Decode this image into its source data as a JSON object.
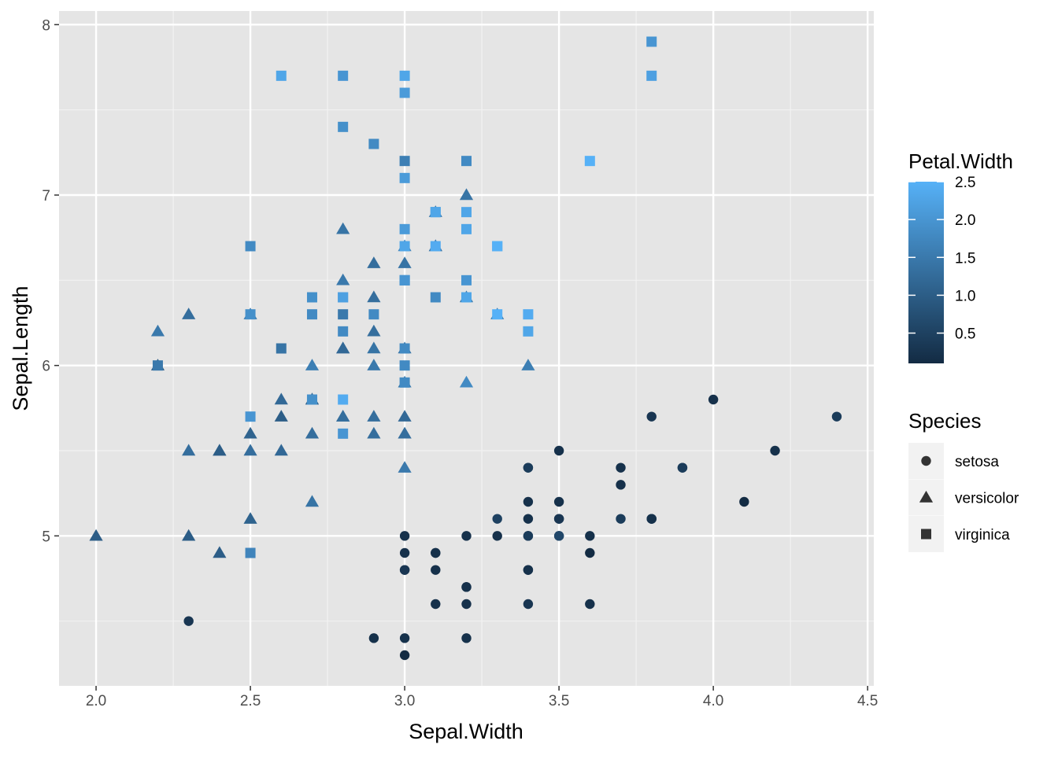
{
  "chart_data": {
    "type": "scatter",
    "xlabel": "Sepal.Width",
    "ylabel": "Sepal.Length",
    "xlim": [
      1.88,
      4.52
    ],
    "ylim": [
      4.12,
      8.08
    ],
    "x_ticks": [
      {
        "value": 2.0,
        "label": "2.0"
      },
      {
        "value": 2.5,
        "label": "2.5"
      },
      {
        "value": 3.0,
        "label": "3.0"
      },
      {
        "value": 3.5,
        "label": "3.5"
      },
      {
        "value": 4.0,
        "label": "4.0"
      },
      {
        "value": 4.5,
        "label": "4.5"
      }
    ],
    "y_ticks": [
      {
        "value": 5,
        "label": "5"
      },
      {
        "value": 6,
        "label": "6"
      },
      {
        "value": 7,
        "label": "7"
      },
      {
        "value": 8,
        "label": "8"
      }
    ],
    "grid": true,
    "background": "#e5e5e5",
    "color_legend": {
      "title": "Petal.Width",
      "low_color": "#132b43",
      "high_color": "#56b1f7",
      "range": [
        0.1,
        2.5
      ],
      "ticks": [
        {
          "value": 0.5,
          "label": "0.5"
        },
        {
          "value": 1.0,
          "label": "1.0"
        },
        {
          "value": 1.5,
          "label": "1.5"
        },
        {
          "value": 2.0,
          "label": "2.0"
        },
        {
          "value": 2.5,
          "label": "2.5"
        }
      ]
    },
    "shape_legend": {
      "title": "Species",
      "entries": [
        {
          "label": "setosa",
          "shape": "circle"
        },
        {
          "label": "versicolor",
          "shape": "triangle"
        },
        {
          "label": "virginica",
          "shape": "square"
        }
      ]
    },
    "series": [
      {
        "name": "setosa",
        "shape": "circle",
        "points": [
          [
            3.5,
            5.1,
            0.2
          ],
          [
            3.0,
            4.9,
            0.2
          ],
          [
            3.2,
            4.7,
            0.2
          ],
          [
            3.1,
            4.6,
            0.2
          ],
          [
            3.6,
            5.0,
            0.2
          ],
          [
            3.9,
            5.4,
            0.4
          ],
          [
            3.4,
            4.6,
            0.3
          ],
          [
            3.4,
            5.0,
            0.2
          ],
          [
            2.9,
            4.4,
            0.2
          ],
          [
            3.1,
            4.9,
            0.1
          ],
          [
            3.7,
            5.4,
            0.2
          ],
          [
            3.4,
            4.8,
            0.2
          ],
          [
            3.0,
            4.8,
            0.1
          ],
          [
            3.0,
            4.3,
            0.1
          ],
          [
            4.0,
            5.8,
            0.2
          ],
          [
            4.4,
            5.7,
            0.4
          ],
          [
            3.9,
            5.4,
            0.4
          ],
          [
            3.5,
            5.1,
            0.3
          ],
          [
            3.8,
            5.7,
            0.3
          ],
          [
            3.8,
            5.1,
            0.3
          ],
          [
            3.4,
            5.4,
            0.2
          ],
          [
            3.7,
            5.1,
            0.4
          ],
          [
            3.6,
            4.6,
            0.2
          ],
          [
            3.3,
            5.1,
            0.5
          ],
          [
            3.4,
            4.8,
            0.2
          ],
          [
            3.0,
            5.0,
            0.2
          ],
          [
            3.4,
            5.0,
            0.4
          ],
          [
            3.5,
            5.2,
            0.2
          ],
          [
            3.4,
            5.2,
            0.2
          ],
          [
            3.2,
            4.7,
            0.2
          ],
          [
            3.1,
            4.8,
            0.2
          ],
          [
            3.4,
            5.4,
            0.4
          ],
          [
            4.1,
            5.2,
            0.1
          ],
          [
            4.2,
            5.5,
            0.2
          ],
          [
            3.1,
            4.9,
            0.2
          ],
          [
            3.2,
            5.0,
            0.2
          ],
          [
            3.5,
            5.5,
            0.2
          ],
          [
            3.6,
            4.9,
            0.1
          ],
          [
            3.0,
            4.4,
            0.2
          ],
          [
            3.4,
            5.1,
            0.2
          ],
          [
            3.5,
            5.0,
            0.3
          ],
          [
            2.3,
            4.5,
            0.3
          ],
          [
            3.2,
            4.4,
            0.2
          ],
          [
            3.5,
            5.0,
            0.6
          ],
          [
            3.8,
            5.1,
            0.4
          ],
          [
            3.0,
            4.8,
            0.3
          ],
          [
            3.8,
            5.1,
            0.2
          ],
          [
            3.2,
            4.6,
            0.2
          ],
          [
            3.7,
            5.3,
            0.2
          ],
          [
            3.3,
            5.0,
            0.2
          ]
        ]
      },
      {
        "name": "versicolor",
        "shape": "triangle",
        "points": [
          [
            3.2,
            7.0,
            1.4
          ],
          [
            3.2,
            6.4,
            1.5
          ],
          [
            3.1,
            6.9,
            1.5
          ],
          [
            2.3,
            5.5,
            1.3
          ],
          [
            2.8,
            6.5,
            1.5
          ],
          [
            2.8,
            5.7,
            1.3
          ],
          [
            3.3,
            6.3,
            1.6
          ],
          [
            2.4,
            4.9,
            1.0
          ],
          [
            2.9,
            6.6,
            1.3
          ],
          [
            2.7,
            5.2,
            1.4
          ],
          [
            2.0,
            5.0,
            1.0
          ],
          [
            3.0,
            5.9,
            1.5
          ],
          [
            2.2,
            6.0,
            1.0
          ],
          [
            2.9,
            6.1,
            1.4
          ],
          [
            2.9,
            5.6,
            1.3
          ],
          [
            3.1,
            6.7,
            1.4
          ],
          [
            3.0,
            5.6,
            1.5
          ],
          [
            2.7,
            5.8,
            1.0
          ],
          [
            2.2,
            6.2,
            1.5
          ],
          [
            2.5,
            5.6,
            1.1
          ],
          [
            3.2,
            5.9,
            1.8
          ],
          [
            2.8,
            6.1,
            1.3
          ],
          [
            2.5,
            6.3,
            1.5
          ],
          [
            2.8,
            6.1,
            1.2
          ],
          [
            2.9,
            6.4,
            1.3
          ],
          [
            3.0,
            6.6,
            1.4
          ],
          [
            2.8,
            6.8,
            1.4
          ],
          [
            3.0,
            6.7,
            1.7
          ],
          [
            2.9,
            6.0,
            1.5
          ],
          [
            2.6,
            5.7,
            1.0
          ],
          [
            2.4,
            5.5,
            1.1
          ],
          [
            2.4,
            5.5,
            1.0
          ],
          [
            2.7,
            5.8,
            1.2
          ],
          [
            2.7,
            6.0,
            1.6
          ],
          [
            3.0,
            5.4,
            1.5
          ],
          [
            3.4,
            6.0,
            1.6
          ],
          [
            3.1,
            6.7,
            1.5
          ],
          [
            2.3,
            6.3,
            1.3
          ],
          [
            3.0,
            5.6,
            1.3
          ],
          [
            2.5,
            5.5,
            1.3
          ],
          [
            2.6,
            5.5,
            1.2
          ],
          [
            3.0,
            6.1,
            1.4
          ],
          [
            2.6,
            5.8,
            1.2
          ],
          [
            2.3,
            5.0,
            1.0
          ],
          [
            2.7,
            5.6,
            1.3
          ],
          [
            3.0,
            5.7,
            1.2
          ],
          [
            2.9,
            5.7,
            1.3
          ],
          [
            2.9,
            6.2,
            1.3
          ],
          [
            2.5,
            5.1,
            1.1
          ],
          [
            2.8,
            5.7,
            1.3
          ]
        ]
      },
      {
        "name": "virginica",
        "shape": "square",
        "points": [
          [
            3.3,
            6.3,
            2.5
          ],
          [
            2.7,
            5.8,
            1.9
          ],
          [
            3.0,
            7.1,
            2.1
          ],
          [
            2.9,
            6.3,
            1.8
          ],
          [
            3.0,
            6.5,
            2.2
          ],
          [
            3.0,
            7.6,
            2.1
          ],
          [
            2.5,
            4.9,
            1.7
          ],
          [
            2.9,
            7.3,
            1.8
          ],
          [
            2.5,
            6.7,
            1.8
          ],
          [
            3.6,
            7.2,
            2.5
          ],
          [
            3.2,
            6.5,
            2.0
          ],
          [
            2.7,
            6.4,
            1.9
          ],
          [
            3.0,
            6.8,
            2.1
          ],
          [
            2.5,
            5.7,
            2.0
          ],
          [
            2.8,
            5.8,
            2.4
          ],
          [
            3.2,
            6.4,
            2.3
          ],
          [
            3.0,
            6.5,
            1.8
          ],
          [
            3.8,
            7.7,
            2.2
          ],
          [
            2.6,
            7.7,
            2.3
          ],
          [
            2.2,
            6.0,
            1.5
          ],
          [
            3.2,
            6.9,
            2.3
          ],
          [
            2.8,
            5.6,
            2.0
          ],
          [
            2.8,
            7.7,
            2.0
          ],
          [
            2.7,
            6.3,
            1.8
          ],
          [
            3.3,
            6.7,
            2.1
          ],
          [
            3.2,
            7.2,
            1.8
          ],
          [
            2.8,
            6.2,
            1.8
          ],
          [
            3.0,
            6.1,
            1.8
          ],
          [
            2.8,
            6.4,
            2.1
          ],
          [
            3.0,
            7.2,
            1.6
          ],
          [
            2.8,
            7.4,
            1.9
          ],
          [
            3.8,
            7.9,
            2.0
          ],
          [
            2.8,
            6.4,
            2.2
          ],
          [
            2.8,
            6.3,
            1.5
          ],
          [
            2.6,
            6.1,
            1.4
          ],
          [
            3.0,
            7.7,
            2.3
          ],
          [
            3.4,
            6.3,
            2.4
          ],
          [
            3.1,
            6.4,
            1.8
          ],
          [
            3.0,
            6.0,
            1.8
          ],
          [
            3.1,
            6.9,
            2.1
          ],
          [
            3.1,
            6.7,
            2.4
          ],
          [
            3.1,
            6.9,
            2.3
          ],
          [
            2.7,
            5.8,
            1.9
          ],
          [
            3.2,
            6.8,
            2.3
          ],
          [
            3.3,
            6.7,
            2.5
          ],
          [
            3.0,
            6.7,
            2.3
          ],
          [
            2.5,
            6.3,
            1.9
          ],
          [
            3.0,
            6.5,
            2.0
          ],
          [
            3.4,
            6.2,
            2.3
          ],
          [
            3.0,
            5.9,
            1.8
          ]
        ]
      }
    ]
  }
}
